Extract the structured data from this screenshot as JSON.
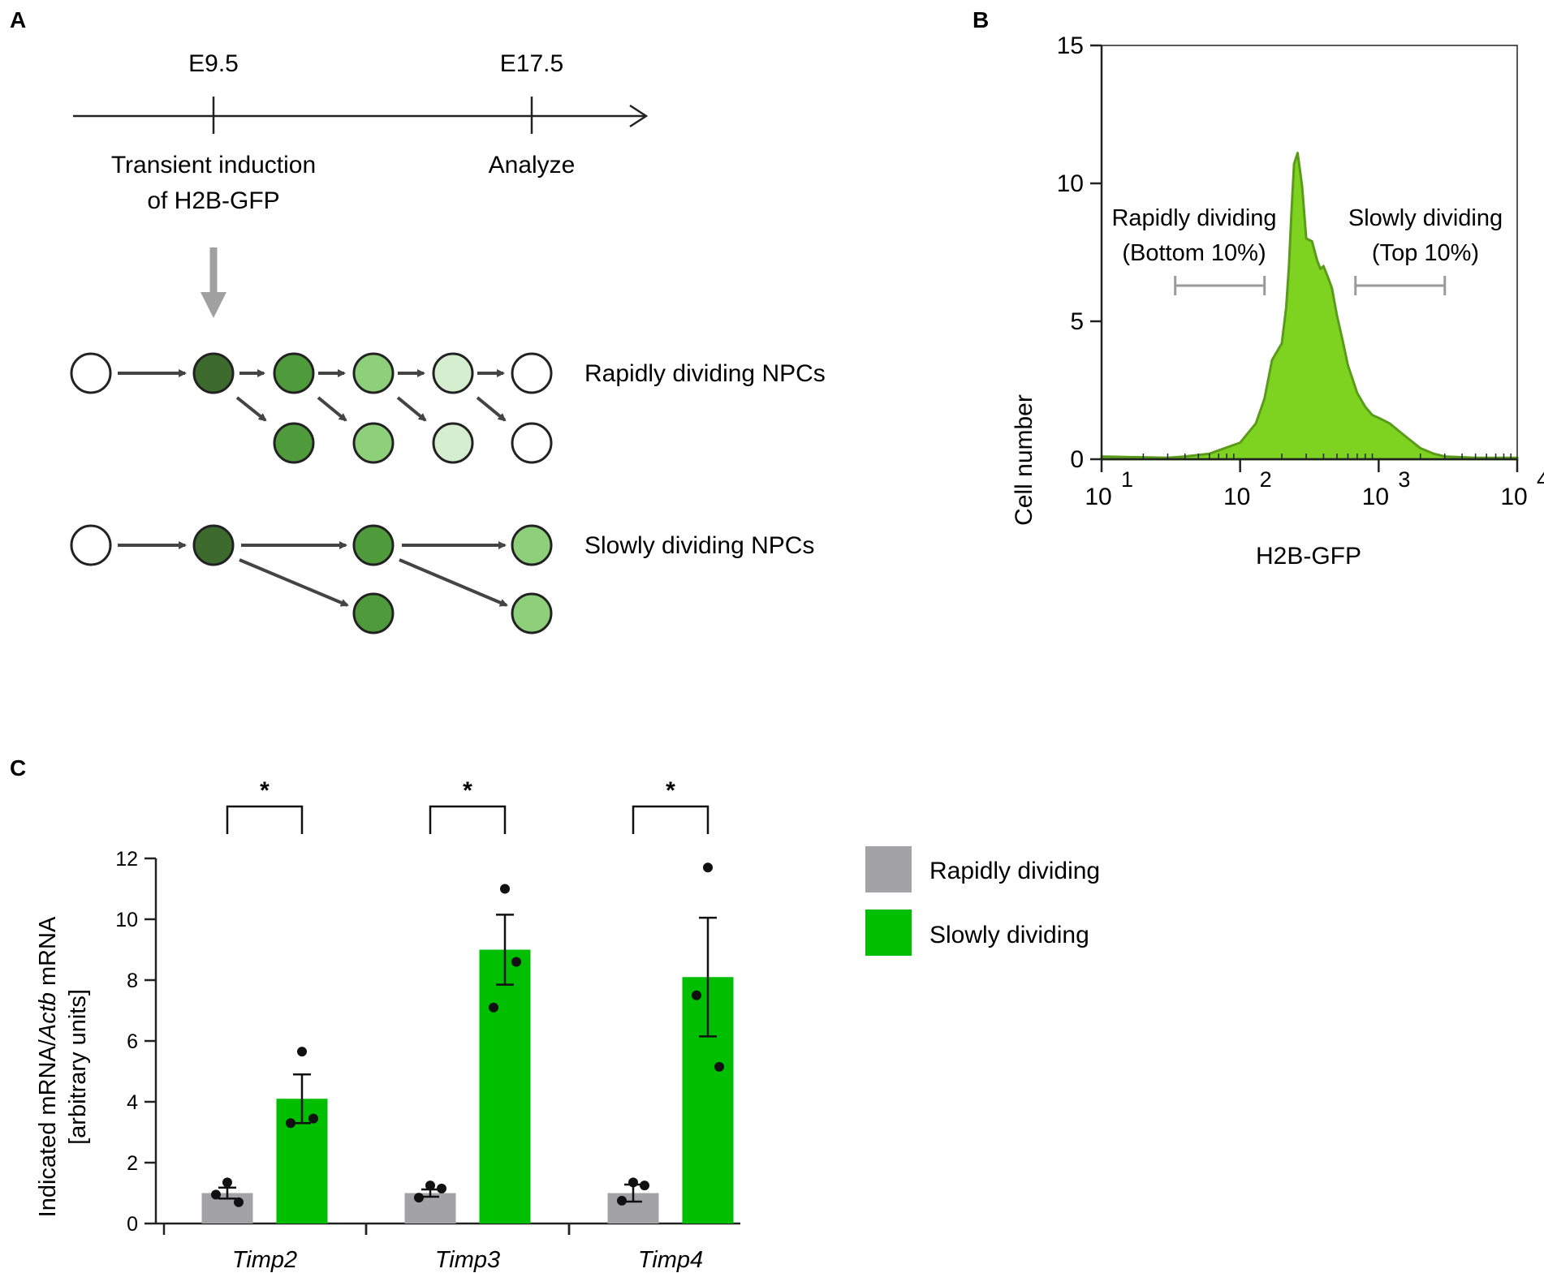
{
  "colors": {
    "black": "#111111",
    "dark_gray": "#444444",
    "gray": "#a3a3a6",
    "bracket_gray": "#9a9a9a",
    "green": "#00bf00",
    "hist_fill": "#7ed321",
    "hist_line": "#5a9c1a",
    "g1": "#3d6b2e",
    "g2": "#4f9a3a",
    "g3": "#8ed07a",
    "g4": "#d6eed0",
    "white": "#ffffff"
  },
  "panel_a": {
    "label": "A",
    "timeline": {
      "e95": "E9.5",
      "e175": "E17.5",
      "induction_line1": "Transient induction",
      "induction_line2": "of H2B-GFP",
      "analyze": "Analyze"
    },
    "rapid_label": "Rapidly dividing NPCs",
    "slow_label": "Slowly dividing NPCs",
    "rapid_top_shades": [
      "white",
      "g1",
      "g2",
      "g3",
      "g4",
      "white"
    ],
    "rapid_bottom_shades": [
      "g2",
      "g3",
      "g4",
      "white"
    ],
    "slow_top_shades": [
      "white",
      "g1",
      "g2",
      "g3"
    ],
    "slow_bottom_shades": [
      "g2",
      "g3"
    ]
  },
  "panel_b": {
    "label": "B",
    "ylabel": "Cell number",
    "xlabel": "H2B-GFP",
    "y_ticks": [
      "0",
      "5",
      "10",
      "15"
    ],
    "x_tick_base": "10",
    "x_tick_exps": [
      "1",
      "2",
      "3",
      "4"
    ],
    "rapid_gate_line1": "Rapidly dividing",
    "rapid_gate_line2": "(Bottom 10%)",
    "slow_gate_line1": "Slowly dividing",
    "slow_gate_line2": "(Top 10%)"
  },
  "panel_c": {
    "label": "C",
    "ylabel_part1": "Indicated mRNA/",
    "ylabel_gene": "Actb",
    "ylabel_part2": " mRNA",
    "ylabel_line2": "[arbitrary units]",
    "y_ticks": [
      "0",
      "2",
      "4",
      "6",
      "8",
      "10",
      "12"
    ],
    "significance": "*",
    "legend": [
      "Rapidly dividing",
      "Slowly dividing"
    ]
  },
  "chart_data": [
    {
      "type": "area",
      "title": "",
      "xlabel": "H2B-GFP",
      "ylabel": "Cell number",
      "xscale": "log",
      "xlim": [
        10,
        10000
      ],
      "ylim": [
        0,
        15
      ],
      "x": [
        10,
        30,
        40,
        60,
        100,
        130,
        150,
        170,
        200,
        215,
        225,
        235,
        245,
        260,
        280,
        300,
        330,
        360,
        380,
        400,
        430,
        460,
        500,
        550,
        600,
        700,
        800,
        900,
        1000,
        1200,
        1500,
        2000,
        2500,
        3000,
        5000,
        10000
      ],
      "y": [
        0.1,
        0.05,
        0.1,
        0.2,
        0.6,
        1.3,
        2.2,
        3.6,
        4.2,
        5.5,
        7.0,
        9.0,
        10.7,
        11.1,
        9.9,
        8.0,
        7.9,
        7.2,
        6.9,
        7.0,
        6.6,
        6.2,
        5.2,
        4.3,
        3.4,
        2.4,
        1.9,
        1.6,
        1.5,
        1.3,
        0.9,
        0.4,
        0.2,
        0.1,
        0.05,
        0.05
      ],
      "gates": [
        {
          "name": "Rapidly dividing (Bottom 10%)",
          "range": [
            34,
            150
          ]
        },
        {
          "name": "Slowly dividing (Top 10%)",
          "range": [
            680,
            3000
          ]
        }
      ]
    },
    {
      "type": "bar",
      "title": "",
      "xlabel": "",
      "ylabel": "Indicated mRNA/Actb mRNA [arbitrary units]",
      "ylim": [
        0,
        12
      ],
      "categories": [
        "Timp2",
        "Timp3",
        "Timp4"
      ],
      "series": [
        {
          "name": "Rapidly dividing",
          "values": [
            1.0,
            1.0,
            1.0
          ],
          "error": [
            0.18,
            0.12,
            0.28
          ],
          "points": [
            [
              1.35,
              0.95,
              0.7
            ],
            [
              1.25,
              0.85,
              1.15
            ],
            [
              1.35,
              0.75,
              1.25
            ]
          ]
        },
        {
          "name": "Slowly dividing",
          "values": [
            4.1,
            9.0,
            8.1
          ],
          "error": [
            0.8,
            1.15,
            1.95
          ],
          "points": [
            [
              5.65,
              3.3,
              3.45
            ],
            [
              11.0,
              7.1,
              8.6
            ],
            [
              11.7,
              7.5,
              5.15
            ]
          ]
        }
      ],
      "significance": [
        "*",
        "*",
        "*"
      ]
    }
  ]
}
